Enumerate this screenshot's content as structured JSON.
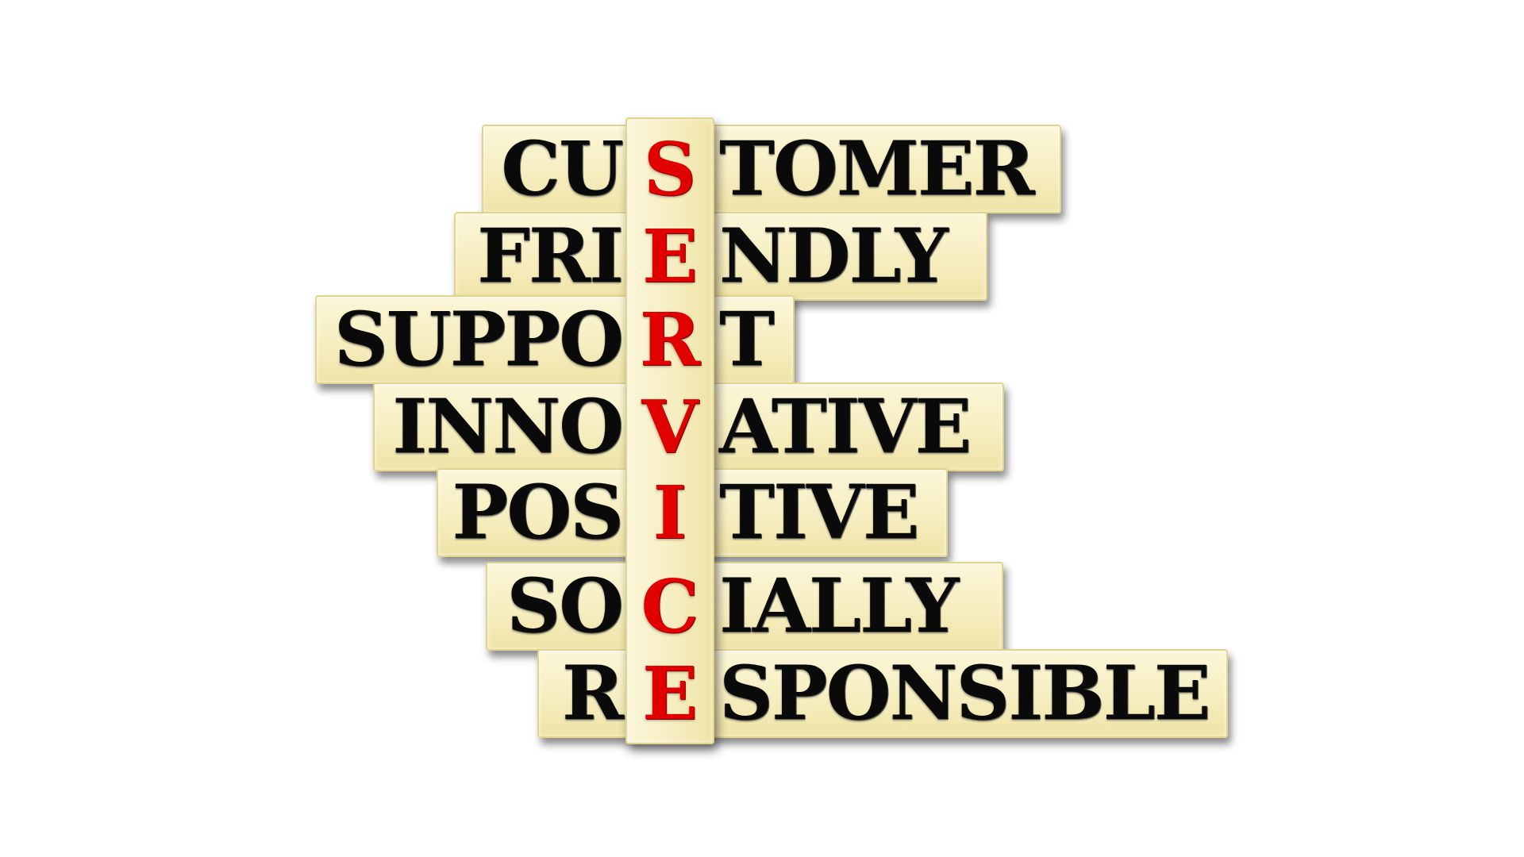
{
  "vertical_word": {
    "letters": [
      "S",
      "E",
      "R",
      "V",
      "I",
      "C",
      "E"
    ],
    "color": "#e00000"
  },
  "rows": [
    {
      "word": "CUSTOMER",
      "before": "CU",
      "letter": "S",
      "after": "TOMER"
    },
    {
      "word": "FRIENDLY",
      "before": "FRI",
      "letter": "E",
      "after": "NDLY"
    },
    {
      "word": "SUPPORT",
      "before": "SUPPO",
      "letter": "R",
      "after": "T"
    },
    {
      "word": "INNOVATIVE",
      "before": "INNO",
      "letter": "V",
      "after": "ATIVE"
    },
    {
      "word": "POSITIVE",
      "before": "POS",
      "letter": "I",
      "after": "TIVE"
    },
    {
      "word": "SOCIALLY",
      "before": "SO",
      "letter": "C",
      "after": "IALLY"
    },
    {
      "word": "RESPONSIBLE",
      "before": "R",
      "letter": "E",
      "after": "SPONSIBLE"
    }
  ],
  "colors": {
    "tile": "#f6eec0",
    "text": "#0a0a0a",
    "background": "#ffffff"
  }
}
